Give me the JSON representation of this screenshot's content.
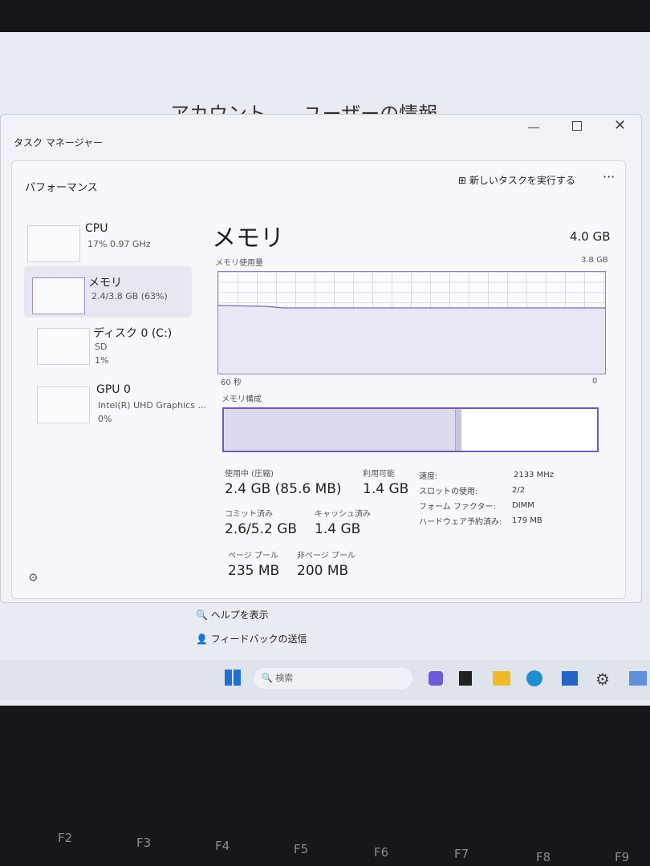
{
  "settings_header": {
    "breadcrumb": [
      "アカウント",
      "›",
      "ユーザーの情報"
    ]
  },
  "window": {
    "title": "タスク マネージャー",
    "section": "パフォーマンス",
    "run_task": "新しいタスクを実行する"
  },
  "sidebar": [
    {
      "label": "CPU",
      "lines": [
        "17% 0.97 GHz"
      ]
    },
    {
      "label": "メモリ",
      "lines": [
        "2.4/3.8 GB (63%)"
      ]
    },
    {
      "label": "ディスク 0 (C:)",
      "lines": [
        "SD",
        "1%"
      ]
    },
    {
      "label": "GPU 0",
      "lines": [
        "Intel(R) UHD Graphics ...",
        "0%"
      ]
    }
  ],
  "main": {
    "title": "メモリ",
    "total": "4.0 GB",
    "usage_label": "メモリ使用量",
    "usage_max": "3.8 GB",
    "time_left": "60 秒",
    "time_right": "0",
    "composition_label": "メモリ構成",
    "stats": [
      {
        "label": "使用中 (圧縮)",
        "value": "2.4 GB (85.6 MB)"
      },
      {
        "label": "利用可能",
        "value": "1.4 GB"
      },
      {
        "label": "コミット済み",
        "value": "2.6/5.2 GB"
      },
      {
        "label": "キャッシュ済み",
        "value": "1.4 GB"
      },
      {
        "label": "ページ プール",
        "value": "235 MB"
      },
      {
        "label": "非ページ プール",
        "value": "200 MB"
      }
    ],
    "details": [
      {
        "label": "速度:",
        "value": "2133 MHz"
      },
      {
        "label": "スロットの使用:",
        "value": "2/2"
      },
      {
        "label": "フォーム ファクター:",
        "value": "DIMM"
      },
      {
        "label": "ハードウェア予約済み:",
        "value": "179 MB"
      }
    ]
  },
  "links": [
    "ヘルプを表示",
    "フィードバックの送信"
  ],
  "taskbar": {
    "search": "検索"
  },
  "keyboard": [
    "F2",
    "F3",
    "F4",
    "F5",
    "F6",
    "F7",
    "F8",
    "F9"
  ]
}
